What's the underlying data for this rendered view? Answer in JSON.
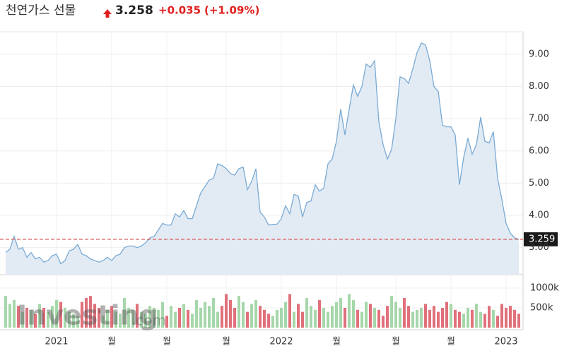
{
  "chart_data": {
    "type": "area",
    "title": "천연가스 선물",
    "price": 3.258,
    "change": "+0.035",
    "change_pct": "(+1.09%)",
    "watermark": "Investing",
    "watermark_suffix": ".com",
    "categories": [
      null,
      null,
      null,
      null,
      null,
      null,
      null,
      null,
      null,
      null,
      null,
      null,
      "2021",
      null,
      null,
      null,
      null,
      null,
      null,
      null,
      null,
      null,
      null,
      null,
      null,
      "월",
      null,
      null,
      null,
      null,
      null,
      null,
      null,
      null,
      null,
      null,
      null,
      null,
      "월",
      null,
      null,
      null,
      null,
      null,
      null,
      null,
      null,
      null,
      null,
      null,
      null,
      null,
      "월",
      null,
      null,
      null,
      null,
      null,
      null,
      null,
      null,
      null,
      null,
      null,
      null,
      "2022",
      null,
      null,
      null,
      null,
      null,
      null,
      null,
      null,
      null,
      null,
      null,
      null,
      "월",
      null,
      null,
      null,
      null,
      null,
      null,
      null,
      null,
      null,
      null,
      null,
      null,
      null,
      "월",
      null,
      null,
      null,
      null,
      null,
      null,
      null,
      null,
      null,
      null,
      null,
      null,
      "월",
      null,
      null,
      null,
      null,
      null,
      null,
      null,
      null,
      null,
      null,
      null,
      null,
      "2023",
      null,
      null,
      null
    ],
    "series": [
      {
        "color": "#7aaad4",
        "fill": "#e2ebf4",
        "values": [
          2.85,
          2.95,
          3.35,
          2.95,
          3.0,
          2.7,
          2.85,
          2.65,
          2.7,
          2.55,
          2.6,
          2.75,
          2.8,
          2.5,
          2.6,
          2.9,
          2.95,
          3.1,
          2.8,
          2.75,
          2.65,
          2.6,
          2.55,
          2.6,
          2.7,
          2.6,
          2.75,
          2.8,
          3.0,
          3.05,
          3.05,
          3.0,
          3.05,
          3.15,
          3.3,
          3.35,
          3.55,
          3.75,
          3.7,
          3.7,
          4.05,
          3.95,
          4.15,
          3.9,
          3.9,
          4.3,
          4.7,
          4.9,
          5.1,
          5.15,
          5.6,
          5.55,
          5.45,
          5.3,
          5.25,
          5.45,
          5.5,
          4.8,
          5.05,
          5.45,
          4.1,
          3.95,
          3.7,
          3.72,
          3.73,
          3.9,
          4.3,
          4.05,
          4.65,
          4.6,
          3.95,
          4.4,
          4.45,
          4.95,
          4.75,
          4.85,
          5.6,
          5.75,
          6.3,
          7.3,
          6.5,
          7.3,
          8.05,
          7.7,
          8.0,
          8.7,
          8.6,
          8.8,
          6.9,
          6.2,
          5.75,
          6.05,
          7.0,
          8.3,
          8.25,
          8.1,
          8.55,
          9.05,
          9.35,
          9.3,
          8.8,
          8.0,
          7.85,
          6.8,
          6.75,
          6.75,
          6.5,
          4.95,
          5.8,
          6.4,
          5.9,
          6.2,
          7.05,
          6.3,
          6.25,
          6.6,
          5.15,
          4.5,
          3.75,
          3.45,
          3.3,
          3.258
        ]
      }
    ],
    "volume": [
      800000,
      600000,
      700000,
      550000,
      400000,
      500000,
      450000,
      350000,
      600000,
      500000,
      400000,
      550000,
      700000,
      650000,
      500000,
      400000,
      350000,
      300000,
      650000,
      750000,
      800000,
      600000,
      500000,
      300000,
      450000,
      550000,
      400000,
      350000,
      750000,
      500000,
      450000,
      600000,
      400000,
      350000,
      550000,
      500000,
      450000,
      650000,
      300000,
      550000,
      400000,
      500000,
      600000,
      450000,
      350000,
      700000,
      500000,
      650000,
      550000,
      750000,
      400000,
      550000,
      850000,
      700000,
      500000,
      800000,
      650000,
      400000,
      600000,
      700000,
      550000,
      450000,
      350000,
      300000,
      450000,
      500000,
      650000,
      850000,
      400000,
      600000,
      400000,
      750000,
      550000,
      450000,
      700000,
      500000,
      400000,
      550000,
      650000,
      750000,
      500000,
      850000,
      700000,
      450000,
      400000,
      650000,
      600000,
      500000,
      450000,
      300000,
      550000,
      800000,
      650000,
      500000,
      750000,
      550000,
      400000,
      450000,
      500000,
      600000,
      450000,
      550000,
      400000,
      500000,
      650000,
      600000,
      450000,
      400000,
      350000,
      500000,
      450000,
      600000,
      400000,
      350000,
      550000,
      450000,
      300000,
      600000,
      500000,
      550000,
      450000,
      350000
    ],
    "volume_up_color": "#a6d7aa",
    "volume_down_color": "#e0707a",
    "ylim": [
      2.16,
      9.7
    ],
    "yticks": [
      {
        "value": 3,
        "label": "3.00"
      },
      {
        "value": 4,
        "label": "4.00"
      },
      {
        "value": 5,
        "label": "5.00"
      },
      {
        "value": 6,
        "label": "6.00"
      },
      {
        "value": 7,
        "label": "7.00"
      },
      {
        "value": 8,
        "label": "8.00"
      },
      {
        "value": 9,
        "label": "9.00"
      }
    ],
    "vlim": [
      0,
      1286000
    ],
    "vticks": [
      {
        "value": 500000,
        "label": "500k"
      },
      {
        "value": 1000000,
        "label": "1000k"
      }
    ],
    "current": 3.259,
    "current_color": "#d9534f",
    "grid": true
  }
}
